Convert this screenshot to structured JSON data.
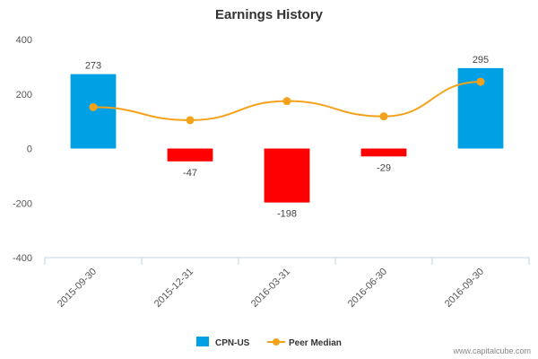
{
  "chart_data": {
    "type": "bar",
    "title": "Earnings History",
    "categories": [
      "2015-09-30",
      "2015-12-31",
      "2016-03-31",
      "2016-06-30",
      "2016-09-30"
    ],
    "series": [
      {
        "name": "CPN-US",
        "kind": "bar",
        "values": [
          273,
          -47,
          -198,
          -29,
          295
        ],
        "labels": [
          "273",
          "-47",
          "-198",
          "-29",
          "295"
        ],
        "color_positive": "#00a1e4",
        "color_negative": "#ff0000"
      },
      {
        "name": "Peer Median",
        "kind": "line-smooth",
        "values": [
          152,
          104,
          174,
          118,
          245
        ],
        "color": "#f5a21b"
      }
    ],
    "ylim": [
      -400,
      400
    ],
    "yticks": [
      "400",
      "200",
      "0",
      "-200",
      "-400"
    ],
    "ytick_values": [
      400,
      200,
      0,
      -200,
      -400
    ],
    "grid": false,
    "legend_position": "bottom-center"
  },
  "credit": "www.capitalcube.com"
}
